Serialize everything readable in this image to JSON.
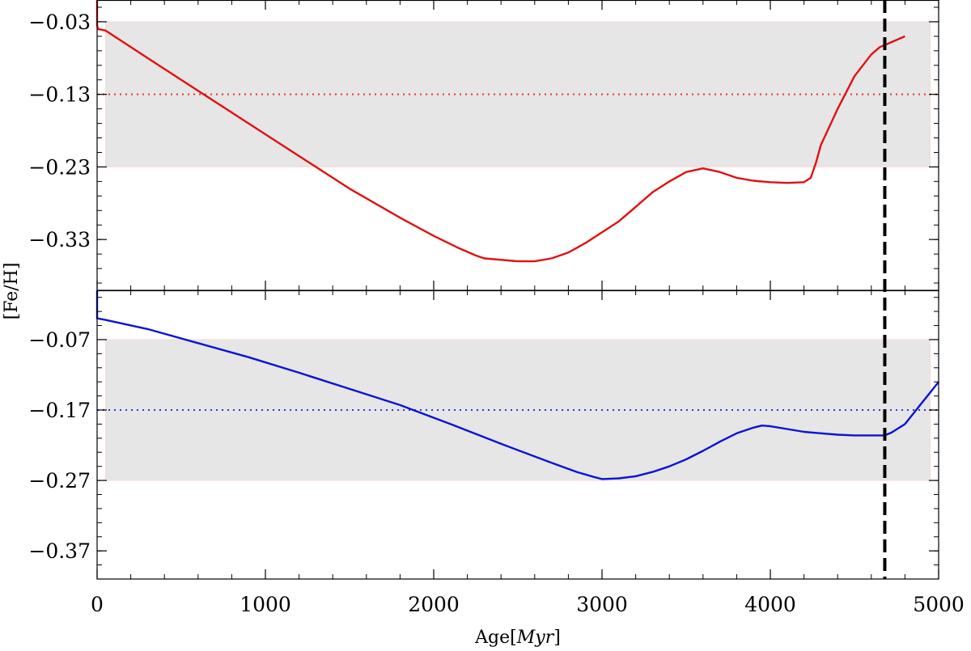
{
  "chart_data": {
    "type": "line",
    "xlabel": "Age[Myr]",
    "xlabel_parts": {
      "main": "Age",
      "open": "[",
      "unit": "Myr",
      "close": "]"
    },
    "ylabel": "[Fe/H]",
    "xlim": [
      0,
      5000
    ],
    "x_ticks": [
      0,
      1000,
      2000,
      3000,
      4000,
      5000
    ],
    "x_tick_labels": [
      "0",
      "1000",
      "2000",
      "3000",
      "4000",
      "5000"
    ],
    "vertical_line": {
      "x": 4680,
      "style": "dashed",
      "color": "#000000"
    },
    "panels": [
      {
        "name": "top",
        "ylim": [
          -0.4,
          0.0
        ],
        "y_ticks": [
          -0.03,
          -0.13,
          -0.23,
          -0.33
        ],
        "y_tick_labels": [
          "−0.03",
          "−0.13",
          "−0.23",
          "−0.33"
        ],
        "band": {
          "x": [
            50,
            4950
          ],
          "y": [
            -0.23,
            -0.03
          ],
          "color": "#e6e6e6",
          "edge": "#fbd9d3"
        },
        "reference_line": {
          "y": -0.13,
          "style": "dotted",
          "color": "#e8302a"
        },
        "series": [
          {
            "color": "#e01010",
            "x": [
              0,
              0,
              5,
              50,
              300,
              600,
              900,
              1200,
              1500,
              1800,
              2000,
              2150,
              2250,
              2300,
              2400,
              2500,
              2600,
              2700,
              2800,
              2900,
              3000,
              3100,
              3200,
              3300,
              3400,
              3500,
              3600,
              3700,
              3800,
              3900,
              4000,
              4100,
              4200,
              4240,
              4270,
              4300,
              4400,
              4500,
              4600,
              4650,
              4700,
              4750,
              4800
            ],
            "y": [
              0.0,
              -0.035,
              -0.04,
              -0.042,
              -0.08,
              -0.125,
              -0.17,
              -0.215,
              -0.26,
              -0.3,
              -0.325,
              -0.342,
              -0.352,
              -0.356,
              -0.358,
              -0.36,
              -0.36,
              -0.356,
              -0.348,
              -0.335,
              -0.32,
              -0.305,
              -0.285,
              -0.265,
              -0.25,
              -0.237,
              -0.232,
              -0.237,
              -0.245,
              -0.249,
              -0.251,
              -0.252,
              -0.251,
              -0.245,
              -0.225,
              -0.2,
              -0.15,
              -0.105,
              -0.075,
              -0.065,
              -0.06,
              -0.055,
              -0.05
            ]
          }
        ]
      },
      {
        "name": "bottom",
        "ylim": [
          -0.41,
          0.0
        ],
        "y_ticks": [
          -0.07,
          -0.17,
          -0.27,
          -0.37
        ],
        "y_tick_labels": [
          "−0.07",
          "−0.17",
          "−0.27",
          "−0.37"
        ],
        "band": {
          "x": [
            50,
            4950
          ],
          "y": [
            -0.27,
            -0.07
          ],
          "color": "#e6e6e6",
          "edge": "#fbd9d3"
        },
        "reference_line": {
          "y": -0.17,
          "style": "dotted",
          "color": "#1f3bd6"
        },
        "series": [
          {
            "color": "#0a14d6",
            "x": [
              0,
              0,
              5,
              50,
              300,
              600,
              900,
              1200,
              1500,
              1800,
              2100,
              2400,
              2700,
              2850,
              2950,
              3000,
              3100,
              3200,
              3300,
              3400,
              3500,
              3600,
              3700,
              3800,
              3900,
              3950,
              4000,
              4100,
              4200,
              4300,
              4400,
              4500,
              4600,
              4680,
              4720,
              4800,
              4900,
              5000
            ],
            "y": [
              0.0,
              -0.04,
              -0.04,
              -0.042,
              -0.055,
              -0.075,
              -0.095,
              -0.117,
              -0.14,
              -0.163,
              -0.19,
              -0.218,
              -0.245,
              -0.258,
              -0.265,
              -0.268,
              -0.267,
              -0.264,
              -0.258,
              -0.25,
              -0.24,
              -0.228,
              -0.215,
              -0.203,
              -0.195,
              -0.192,
              -0.193,
              -0.197,
              -0.201,
              -0.203,
              -0.205,
              -0.206,
              -0.206,
              -0.206,
              -0.202,
              -0.19,
              -0.16,
              -0.13
            ]
          }
        ]
      }
    ]
  }
}
